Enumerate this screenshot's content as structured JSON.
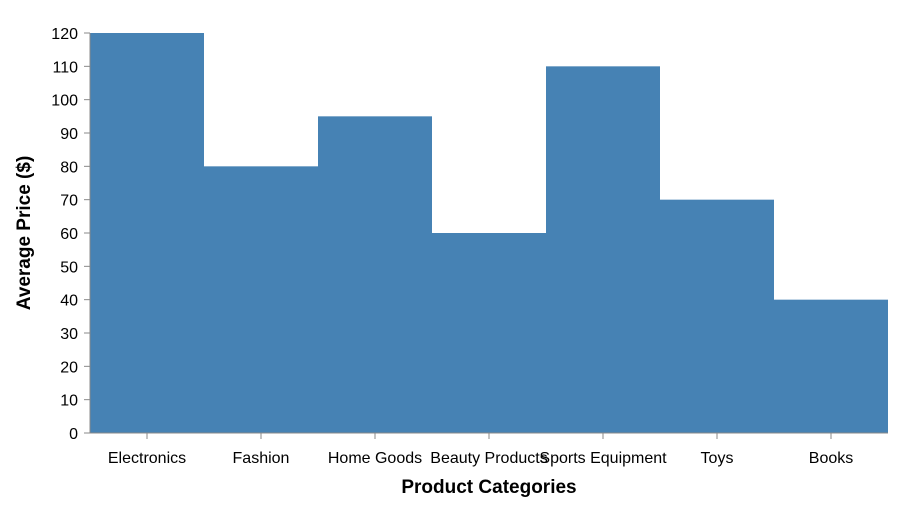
{
  "chart_data": {
    "type": "bar",
    "categories": [
      "Electronics",
      "Fashion",
      "Home Goods",
      "Beauty Products",
      "Sports Equipment",
      "Toys",
      "Books"
    ],
    "values": [
      120,
      80,
      95,
      60,
      110,
      70,
      40
    ],
    "xlabel": "Product Categories",
    "ylabel": "Average Price ($)",
    "ylim": [
      0,
      120
    ],
    "yticks": [
      0,
      10,
      20,
      30,
      40,
      50,
      60,
      70,
      80,
      90,
      100,
      110,
      120
    ],
    "grid": false,
    "bar_color": "#4682b4",
    "axis_color": "#888888"
  }
}
